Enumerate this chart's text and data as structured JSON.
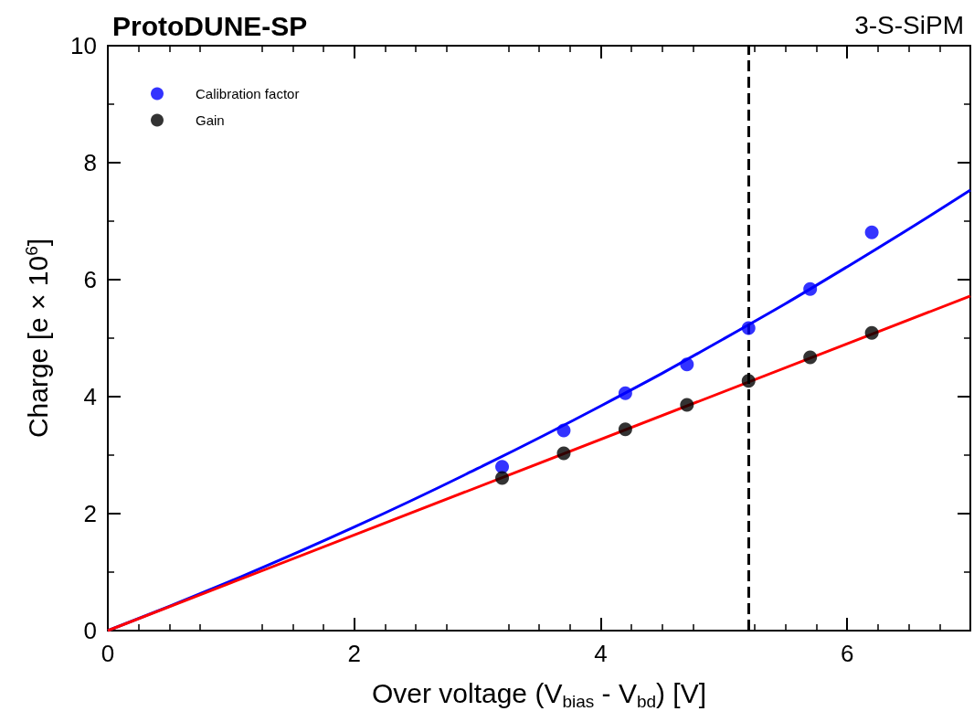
{
  "chart_data": {
    "type": "scatter",
    "title": "ProtoDUNE-SP",
    "subtitle": "3-S-SiPM",
    "xlabel": "Over voltage (V$_{bias}$ - V$_{bd}$) [V]",
    "ylabel": "Charge [e × 10$^{6}$]",
    "x": [
      3.2,
      3.7,
      4.2,
      4.7,
      5.2,
      5.7,
      6.2
    ],
    "series": [
      {
        "name": "Calibration factor",
        "color": "#0000ff",
        "marker": "circle",
        "values": [
          2.8,
          3.42,
          4.06,
          4.55,
          5.17,
          5.84,
          6.81
        ]
      },
      {
        "name": "Gain",
        "color": "#000000",
        "marker": "circle",
        "values": [
          2.61,
          3.03,
          3.44,
          3.86,
          4.27,
          4.67,
          5.09
        ]
      },
      {
        "type": "line",
        "color": "#0000ff",
        "marker": "none",
        "x": [
          0,
          1,
          2,
          3,
          4,
          5,
          6,
          7
        ],
        "values": [
          0,
          0.85,
          1.77,
          2.77,
          3.84,
          4.99,
          6.22,
          7.53
        ]
      },
      {
        "type": "line",
        "color": "#ff0000",
        "marker": "none",
        "x": [
          0,
          7
        ],
        "values": [
          0,
          5.72
        ]
      }
    ],
    "xlim": [
      0,
      7
    ],
    "xticks": [
      0,
      2,
      4,
      6
    ],
    "ylim": [
      0,
      10
    ],
    "yticks": [
      0,
      2,
      4,
      6,
      8,
      10
    ],
    "ref_lines": [
      {
        "axis": "x",
        "value": 5.2,
        "color": "#000000",
        "line_style": "dashed"
      }
    ],
    "grid": false,
    "legend": "top left"
  }
}
